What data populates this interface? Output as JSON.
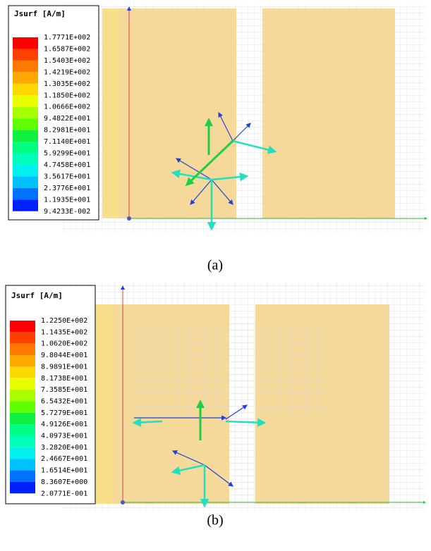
{
  "panels": [
    {
      "legend": {
        "title": "Jsurf [A/m]",
        "labels": [
          "1.7771E+002",
          "1.6587E+002",
          "1.5403E+002",
          "1.4219E+002",
          "1.3035E+002",
          "1.1850E+002",
          "1.0666E+002",
          "9.4822E+001",
          "8.2981E+001",
          "7.1140E+001",
          "5.9299E+001",
          "4.7458E+001",
          "3.5617E+001",
          "2.3776E+001",
          "1.1935E+001",
          "9.4233E-002"
        ]
      },
      "caption": "(a)"
    },
    {
      "legend": {
        "title": "Jsurf [A/m]",
        "labels": [
          "1.2250E+002",
          "1.1435E+002",
          "1.0620E+002",
          "9.8044E+001",
          "8.9891E+001",
          "8.1738E+001",
          "7.3585E+001",
          "6.5432E+001",
          "5.7279E+001",
          "4.9126E+001",
          "4.0973E+001",
          "3.2820E+001",
          "2.4667E+001",
          "1.6514E+001",
          "8.3607E+000",
          "2.0771E-001"
        ]
      },
      "caption": "(b)"
    }
  ]
}
